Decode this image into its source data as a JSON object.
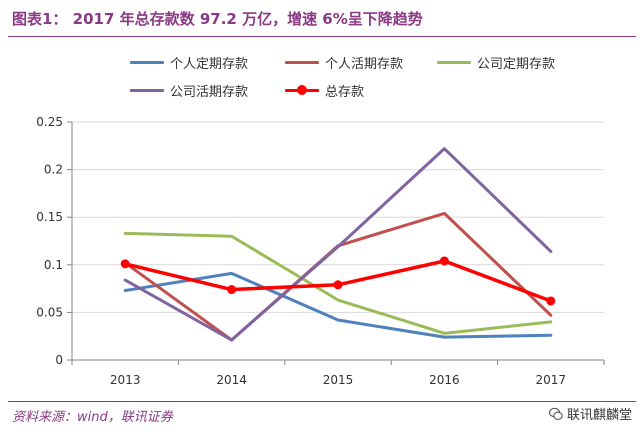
{
  "source": "资料来源：wind，联讯证券",
  "watermark": "联讯麒麟堂",
  "colors": {
    "title": "#8a3a84",
    "source": "#8a3a84",
    "rule": "#8a3a84"
  },
  "icons": {
    "watermark": "wechat-icon"
  },
  "chart_data": {
    "type": "line",
    "title": "图表1： 2017 年总存款数 97.2 万亿，增速 6%呈下降趋势",
    "categories": [
      "2013",
      "2014",
      "2015",
      "2016",
      "2017"
    ],
    "yticks": [
      "0",
      "0.05",
      "0.1",
      "0.15",
      "0.2",
      "0.25"
    ],
    "ylim": [
      0,
      0.25
    ],
    "grid": true,
    "legend": "top",
    "series": [
      {
        "name": "个人定期存款",
        "color": "#4f81bd",
        "marker": "none",
        "values": [
          0.073,
          0.091,
          0.042,
          0.024,
          0.026
        ]
      },
      {
        "name": "个人活期存款",
        "color": "#c0504d",
        "marker": "none",
        "values": [
          0.102,
          0.021,
          0.12,
          0.154,
          0.047
        ]
      },
      {
        "name": "公司定期存款",
        "color": "#9bbb59",
        "marker": "none",
        "values": [
          0.133,
          0.13,
          0.063,
          0.028,
          0.04
        ]
      },
      {
        "name": "公司活期存款",
        "color": "#8064a2",
        "marker": "none",
        "values": [
          0.084,
          0.021,
          0.119,
          0.222,
          0.114
        ]
      },
      {
        "name": "总存款",
        "color": "#ff0000",
        "marker": "circle",
        "values": [
          0.101,
          0.074,
          0.079,
          0.104,
          0.062
        ]
      }
    ]
  }
}
